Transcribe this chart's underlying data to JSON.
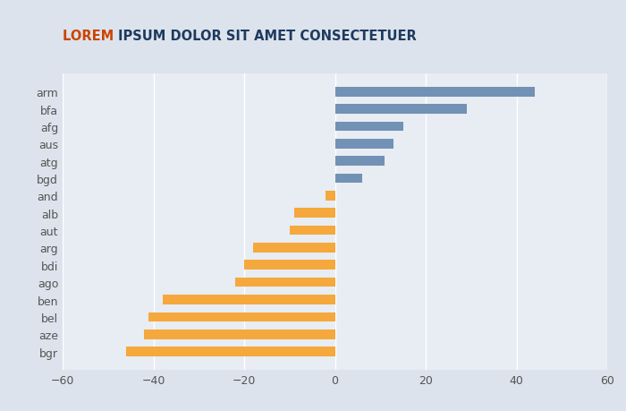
{
  "title_lorem": "LOREM ",
  "title_rest": "IPSUM DOLOR SIT AMET CONSECTETUER",
  "categories": [
    "arm",
    "bfa",
    "afg",
    "aus",
    "atg",
    "bgd",
    "and",
    "alb",
    "aut",
    "arg",
    "bdi",
    "ago",
    "ben",
    "bel",
    "aze",
    "bgr"
  ],
  "values": [
    44,
    29,
    15,
    13,
    11,
    6,
    -2,
    -9,
    -10,
    -18,
    -20,
    -22,
    -38,
    -41,
    -42,
    -46
  ],
  "bar_colors": [
    "#7292b5",
    "#7292b5",
    "#7292b5",
    "#7292b5",
    "#7292b5",
    "#7292b5",
    "#f5a83c",
    "#f5a83c",
    "#f5a83c",
    "#f5a83c",
    "#f5a83c",
    "#f5a83c",
    "#f5a83c",
    "#f5a83c",
    "#f5a83c",
    "#f5a83c"
  ],
  "xlim": [
    -60,
    60
  ],
  "xticks": [
    -60,
    -40,
    -20,
    0,
    20,
    40,
    60
  ],
  "background_color": "#dce3ec",
  "plot_bg_color": "#e8ecf3",
  "title_color_lorem": "#cc4400",
  "title_color_rest": "#1e3a5f",
  "title_fontsize": 10.5,
  "grid_color": "#ffffff",
  "tick_label_color": "#555555",
  "bar_height": 0.55
}
